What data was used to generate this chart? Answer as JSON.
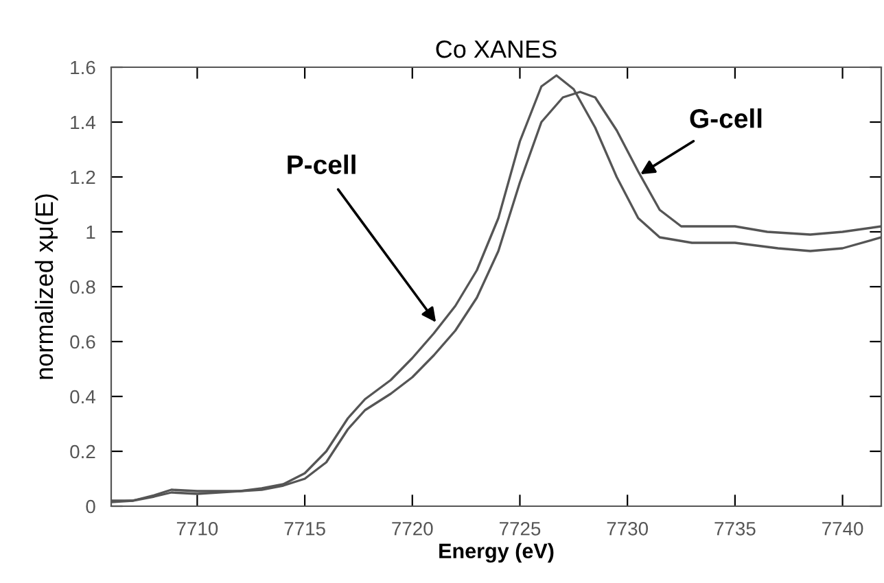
{
  "chart_data": {
    "type": "line",
    "title": "Co XANES",
    "xlabel": "Energy (eV)",
    "ylabel": "normalized xμ(E)",
    "xlim": [
      7706,
      7741.8
    ],
    "xticks": [
      7710,
      7715,
      7720,
      7725,
      7730,
      7735,
      7740
    ],
    "ylim": [
      0,
      1.6
    ],
    "yticks": [
      0,
      0.2,
      0.4,
      0.6,
      0.8,
      1,
      1.2,
      1.4,
      1.6
    ],
    "grid": false,
    "legend": false,
    "marker": "none",
    "line_style": "solid",
    "series": [
      {
        "color": "#555555",
        "x": [
          7706,
          7707,
          7708,
          7708.8,
          7710,
          7712,
          7713,
          7714,
          7715,
          7716,
          7717,
          7717.8,
          7719,
          7720,
          7721,
          7722,
          7723,
          7724,
          7725,
          7726,
          7726.7,
          7727.5,
          7728.5,
          7729.5,
          7730.5,
          7731.5,
          7733,
          7735,
          7737,
          7738.5,
          7740,
          7741.8
        ],
        "values": [
          0.02,
          0.02,
          0.04,
          0.06,
          0.055,
          0.055,
          0.065,
          0.08,
          0.12,
          0.2,
          0.32,
          0.39,
          0.46,
          0.54,
          0.63,
          0.73,
          0.86,
          1.05,
          1.33,
          1.53,
          1.57,
          1.52,
          1.38,
          1.2,
          1.05,
          0.98,
          0.96,
          0.96,
          0.94,
          0.93,
          0.94,
          0.98
        ]
      },
      {
        "color": "#555555",
        "x": [
          7706,
          7707,
          7708,
          7708.8,
          7710,
          7712,
          7713,
          7714,
          7715,
          7716,
          7717,
          7717.8,
          7719,
          7720,
          7721,
          7722,
          7723,
          7724,
          7725,
          7726,
          7727,
          7727.8,
          7728.5,
          7729.5,
          7730.5,
          7731.5,
          7732.5,
          7734,
          7735,
          7736.5,
          7738.5,
          7740,
          7741.8
        ],
        "values": [
          0.015,
          0.02,
          0.035,
          0.05,
          0.045,
          0.055,
          0.06,
          0.075,
          0.1,
          0.16,
          0.28,
          0.35,
          0.41,
          0.47,
          0.55,
          0.64,
          0.76,
          0.93,
          1.18,
          1.4,
          1.49,
          1.51,
          1.49,
          1.37,
          1.22,
          1.08,
          1.02,
          1.02,
          1.02,
          1.0,
          0.99,
          1.0,
          1.02
        ]
      }
    ],
    "annotations": [
      {
        "text": "P-cell",
        "x": 7721.1,
        "y": 0.67
      },
      {
        "text": "G-cell",
        "x": 7730.6,
        "y": 1.21
      }
    ]
  }
}
